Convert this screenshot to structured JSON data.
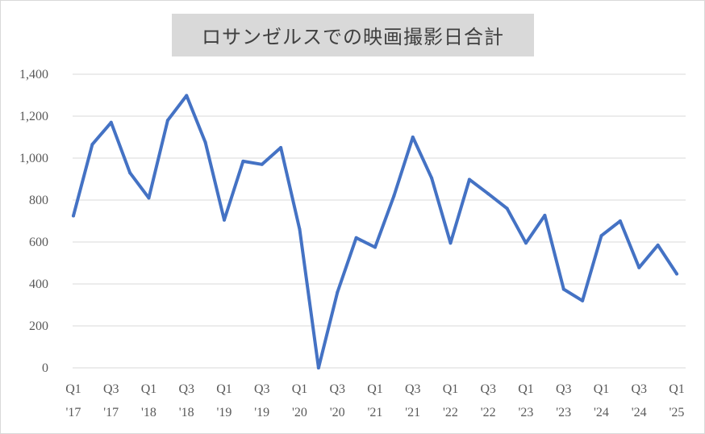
{
  "chart_data": {
    "type": "line",
    "title": "ロサンゼルスでの映画撮影日合計",
    "xlabel": "",
    "ylabel": "",
    "ylim": [
      0,
      1400
    ],
    "yticks": [
      0,
      200,
      400,
      600,
      800,
      1000,
      1200,
      1400
    ],
    "ytick_labels": [
      "0",
      "200",
      "400",
      "600",
      "800",
      "1,000",
      "1,200",
      "1,400"
    ],
    "grid": true,
    "legend": "none",
    "line_color": "#4472c4",
    "x": [
      "Q1 '17",
      "Q2 '17",
      "Q3 '17",
      "Q4 '17",
      "Q1 '18",
      "Q2 '18",
      "Q3 '18",
      "Q4 '18",
      "Q1 '19",
      "Q2 '19",
      "Q3 '19",
      "Q4 '19",
      "Q1 '20",
      "Q2 '20",
      "Q3 '20",
      "Q4 '20",
      "Q1 '21",
      "Q2 '21",
      "Q3 '21",
      "Q4 '21",
      "Q1 '22",
      "Q2 '22",
      "Q3 '22",
      "Q4 '22",
      "Q1 '23",
      "Q2 '23",
      "Q3 '23",
      "Q4 '23",
      "Q1 '24",
      "Q2 '24",
      "Q3 '24",
      "Q4 '24",
      "Q1 '25"
    ],
    "series": [
      {
        "values": [
          725,
          1065,
          1170,
          930,
          810,
          1180,
          1298,
          1075,
          705,
          985,
          970,
          1050,
          660,
          0,
          360,
          620,
          575,
          820,
          1100,
          905,
          595,
          898,
          830,
          760,
          595,
          727,
          375,
          320,
          630,
          700,
          478,
          585,
          448
        ]
      }
    ],
    "x_tick_labels": [
      {
        "q": "Q1",
        "yr": "'17"
      },
      {
        "q": "Q3",
        "yr": "'17"
      },
      {
        "q": "Q1",
        "yr": "'18"
      },
      {
        "q": "Q3",
        "yr": "'18"
      },
      {
        "q": "Q1",
        "yr": "'19"
      },
      {
        "q": "Q3",
        "yr": "'19"
      },
      {
        "q": "Q1",
        "yr": "'20"
      },
      {
        "q": "Q3",
        "yr": "'20"
      },
      {
        "q": "Q1",
        "yr": "'21"
      },
      {
        "q": "Q3",
        "yr": "'21"
      },
      {
        "q": "Q1",
        "yr": "'22"
      },
      {
        "q": "Q3",
        "yr": "'22"
      },
      {
        "q": "Q1",
        "yr": "'23"
      },
      {
        "q": "Q3",
        "yr": "'23"
      },
      {
        "q": "Q1",
        "yr": "'24"
      },
      {
        "q": "Q3",
        "yr": "'24"
      },
      {
        "q": "Q1",
        "yr": "'25"
      }
    ]
  }
}
